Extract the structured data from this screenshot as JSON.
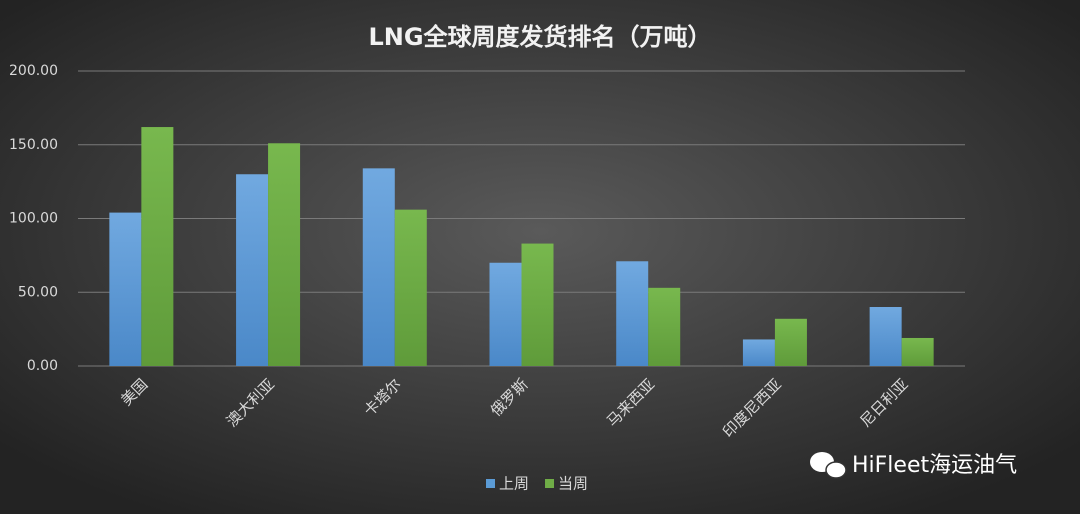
{
  "chart_data": {
    "type": "bar",
    "title": "LNG全球周度发货排名（万吨）",
    "categories": [
      "美国",
      "澳大利亚",
      "卡塔尔",
      "俄罗斯",
      "马来西亚",
      "印度尼西亚",
      "尼日利亚"
    ],
    "series": [
      {
        "name": "上周",
        "color": "#5b9bd5",
        "values": [
          104,
          130,
          134,
          70,
          71,
          18,
          40
        ]
      },
      {
        "name": "当周",
        "color": "#70ad47",
        "values": [
          162,
          151,
          106,
          83,
          53,
          32,
          19
        ]
      }
    ],
    "ylim": [
      0,
      200
    ],
    "yticks": [
      {
        "value": 0,
        "label": "0.00"
      },
      {
        "value": 50,
        "label": "50.00"
      },
      {
        "value": 100,
        "label": "100.00"
      },
      {
        "value": 150,
        "label": "150.00"
      },
      {
        "value": 200,
        "label": "200.00"
      }
    ],
    "grid": true,
    "legend": "bottom",
    "watermark": "HiFleet海运油气"
  }
}
